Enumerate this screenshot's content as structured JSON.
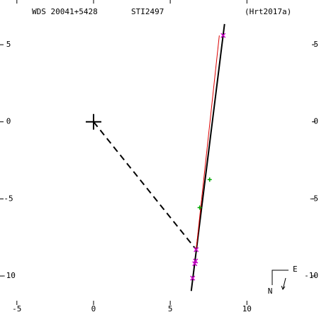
{
  "chart_data": {
    "type": "orbit",
    "header": [
      "WDS 20041+5428",
      "STI2497",
      "(Hrt2017a)"
    ],
    "compass": [
      "E",
      "N"
    ],
    "xlim": [
      -6.1,
      14.7
    ],
    "ylim": [
      -12.8,
      7.9
    ],
    "xticks": [
      -5,
      0,
      5,
      10
    ],
    "yticks": [
      5,
      0,
      -5,
      -10
    ],
    "primary": {
      "x": 0,
      "y": 0
    },
    "series": [
      {
        "style": "solid",
        "color": "#000000",
        "x": [
          6.37,
          8.54
        ],
        "y": [
          -10.97,
          6.34
        ]
      },
      {
        "style": "solid",
        "color": "#dd0000",
        "x": [
          6.69,
          8.2
        ],
        "y": [
          -8.29,
          5.6
        ]
      },
      {
        "style": "dashed",
        "color": "#000000",
        "x": [
          0,
          6.69
        ],
        "y": [
          0,
          -8.29
        ]
      },
      {
        "style": "marker",
        "marker": "x",
        "color": "#cc00cc",
        "x": [
          8.45,
          6.69,
          6.65,
          6.6,
          6.46
        ],
        "y": [
          5.6,
          -8.29,
          -9.03,
          -9.2,
          -10.14
        ]
      },
      {
        "style": "marker",
        "marker": "+",
        "color": "#00aa00",
        "x": [
          7.57,
          6.92
        ],
        "y": [
          -3.75,
          -5.56
        ]
      }
    ]
  }
}
